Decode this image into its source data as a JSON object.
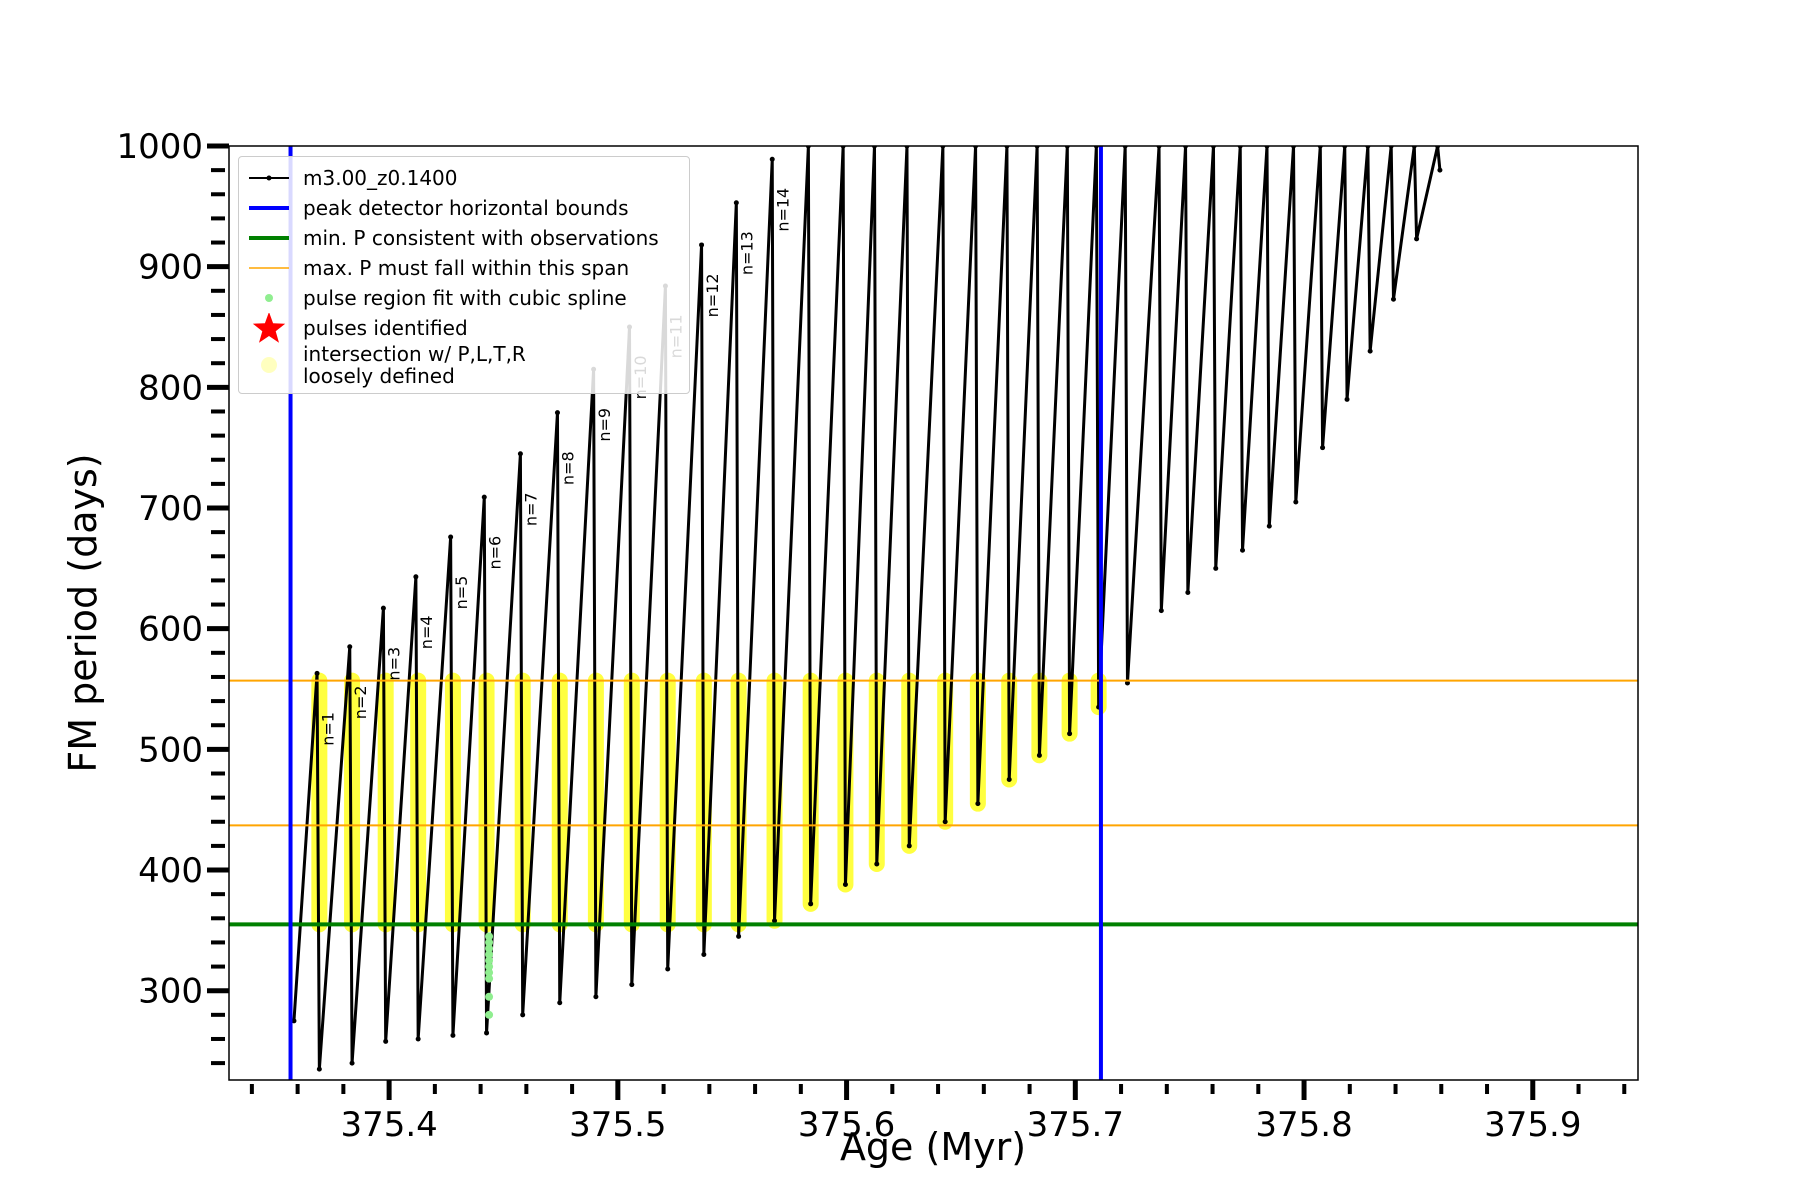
{
  "chart_data": {
    "type": "line",
    "xlabel": "Age (Myr)",
    "ylabel": "FM period (days)",
    "xlim": [
      375.33,
      375.946
    ],
    "ylim": [
      226,
      1000
    ],
    "xticks": [
      375.4,
      375.5,
      375.6,
      375.7,
      375.8,
      375.9
    ],
    "yticks": [
      300,
      400,
      500,
      600,
      700,
      800,
      900,
      1000
    ],
    "legend": "upper left",
    "series": [
      {
        "name": "m3.00_z0.1400",
        "color": "#000000",
        "x": [
          375.3584,
          375.3685,
          375.3695,
          375.3828,
          375.3838,
          375.3975,
          375.3985,
          375.4117,
          375.4127,
          375.4269,
          375.4279,
          375.4416,
          375.4426,
          375.4574,
          375.4584,
          375.4736,
          375.4746,
          375.4894,
          375.4904,
          375.5051,
          375.5061,
          375.5208,
          375.5218,
          375.5366,
          375.5376,
          375.5518,
          375.5528,
          375.5675,
          375.5685,
          375.5833,
          375.5843,
          375.5985,
          375.5995,
          375.6122,
          375.6132,
          375.6264,
          375.6274,
          375.6421,
          375.6431,
          375.6564,
          375.6574,
          375.6701,
          375.6711,
          375.6833,
          375.6843,
          375.6965,
          375.6975,
          375.7092,
          375.7102,
          375.7218,
          375.7228,
          375.7366,
          375.7376,
          375.7482,
          375.7492,
          375.7604,
          375.7614,
          375.7721,
          375.7731,
          375.7838,
          375.7848,
          375.7954,
          375.7964,
          375.8071,
          375.8081,
          375.8178,
          375.8188,
          375.8279,
          375.8289,
          375.8381,
          375.8391,
          375.8482,
          375.8492,
          375.8584,
          375.8594
        ],
        "values": [
          275,
          563,
          235,
          585,
          240,
          617,
          258,
          643,
          260,
          676,
          263,
          709,
          265,
          745,
          280,
          779,
          290,
          815,
          295,
          850,
          305,
          884,
          318,
          918,
          330,
          953,
          345,
          989,
          358,
          1000,
          372,
          1000,
          388,
          1000,
          405,
          1000,
          420,
          1000,
          440,
          1000,
          455,
          1000,
          475,
          1000,
          495,
          1000,
          513,
          1000,
          535,
          1000,
          555,
          1000,
          615,
          1000,
          630,
          1000,
          650,
          1000,
          665,
          1000,
          685,
          1000,
          705,
          1000,
          750,
          1000,
          790,
          1000,
          830,
          1000,
          873,
          1000,
          923,
          1000,
          980
        ]
      }
    ],
    "vlines": {
      "name": "peak detector horizontal bounds",
      "color": "#0000ff",
      "x": [
        375.3569,
        375.7112
      ]
    },
    "hlines": [
      {
        "name": "min. P consistent with observations",
        "color": "#008000",
        "values": [
          355
        ]
      },
      {
        "name": "max. P must fall within this span",
        "color": "#ffa500",
        "values": [
          437,
          557
        ]
      }
    ],
    "spline": {
      "name": "pulse region fit with cubic spline",
      "color": "#90ee90",
      "x": [
        375.4437,
        375.4437,
        375.4437,
        375.4437,
        375.4437,
        375.4437,
        375.4437,
        375.4437,
        375.4437,
        375.4437
      ],
      "values": [
        280,
        295,
        310,
        315,
        320,
        325,
        330,
        335,
        340,
        345
      ]
    },
    "pulses": {
      "name": "pulses identified",
      "color": "#ff0000"
    },
    "intersections": {
      "name": "intersection w/ P,L,T,R\nloosely defined",
      "color": "#ffff00",
      "x": [
        375.3695,
        375.3838,
        375.3985,
        375.4127,
        375.4279,
        375.4426,
        375.4584,
        375.4746,
        375.4904,
        375.5061,
        375.5218,
        375.5376,
        375.5528,
        375.5685,
        375.5843,
        375.5995,
        375.6132,
        375.6274,
        375.6431,
        375.6574,
        375.6711,
        375.6843,
        375.6975,
        375.7102
      ],
      "low": [
        355,
        355,
        355,
        355,
        355,
        355,
        355,
        355,
        355,
        355,
        355,
        355,
        355,
        358,
        372,
        388,
        405,
        420,
        440,
        455,
        475,
        495,
        513,
        535
      ],
      "high": [
        557,
        557,
        557,
        557,
        557,
        557,
        557,
        557,
        557,
        557,
        557,
        557,
        557,
        557,
        557,
        557,
        557,
        557,
        557,
        557,
        557,
        557,
        557,
        557
      ]
    },
    "annotations": [
      "n=1",
      "n=2",
      "n=3",
      "n=4",
      "n=5",
      "n=6",
      "n=7",
      "n=8",
      "n=9",
      "n=10",
      "n=11",
      "n=12",
      "n=13",
      "n=14"
    ]
  }
}
